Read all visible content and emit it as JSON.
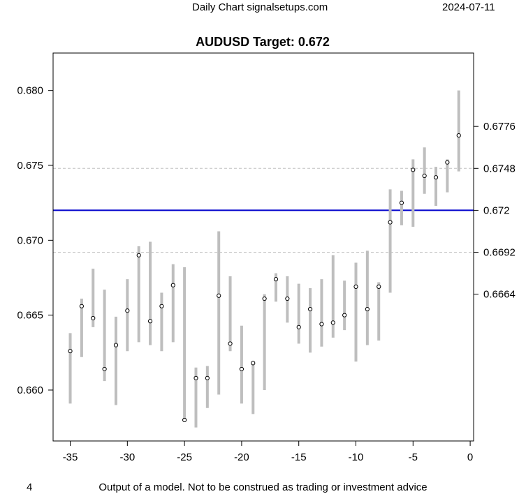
{
  "header": {
    "site": "Daily Chart signalsetups.com",
    "date": "2024-07-11"
  },
  "footer": {
    "number": "4",
    "disclaimer": "Output of a model. Not to be construed as trading or investment advice"
  },
  "colors": {
    "range_bar": "#bebebe",
    "target_line": "#0000cc",
    "ref_line": "#c0c0c0",
    "axis": "#000000"
  },
  "chart_data": {
    "type": "range",
    "title": "AUDUSD Target: 0.672",
    "xlabel": "",
    "ylabel": "",
    "xlim": [
      -36.5,
      0.3
    ],
    "ylim": [
      0.6566,
      0.6825
    ],
    "x_ticks": [
      -35,
      -30,
      -25,
      -20,
      -15,
      -10,
      -5,
      0
    ],
    "y_ticks_left": [
      0.66,
      0.665,
      0.67,
      0.675,
      0.68
    ],
    "y_ticks_right": [
      0.6664,
      0.6692,
      0.672,
      0.6748,
      0.6776
    ],
    "target": 0.672,
    "reference_lines": [
      0.6748,
      0.6692
    ],
    "grid": false,
    "bars": [
      {
        "x": -35,
        "low": 0.6591,
        "high": 0.6638,
        "close": 0.6626
      },
      {
        "x": -34,
        "low": 0.6622,
        "high": 0.6661,
        "close": 0.6656
      },
      {
        "x": -33,
        "low": 0.6642,
        "high": 0.6681,
        "close": 0.6648
      },
      {
        "x": -32,
        "low": 0.6606,
        "high": 0.6667,
        "close": 0.6614
      },
      {
        "x": -31,
        "low": 0.659,
        "high": 0.6649,
        "close": 0.663
      },
      {
        "x": -30,
        "low": 0.6626,
        "high": 0.6674,
        "close": 0.6653
      },
      {
        "x": -29,
        "low": 0.6632,
        "high": 0.6696,
        "close": 0.669
      },
      {
        "x": -28,
        "low": 0.663,
        "high": 0.6699,
        "close": 0.6646
      },
      {
        "x": -27,
        "low": 0.6626,
        "high": 0.6665,
        "close": 0.6656
      },
      {
        "x": -26,
        "low": 0.6632,
        "high": 0.6684,
        "close": 0.667
      },
      {
        "x": -25,
        "low": 0.6579,
        "high": 0.6682,
        "close": 0.658
      },
      {
        "x": -24,
        "low": 0.6575,
        "high": 0.6615,
        "close": 0.6608
      },
      {
        "x": -23,
        "low": 0.6588,
        "high": 0.6616,
        "close": 0.6608
      },
      {
        "x": -22,
        "low": 0.6597,
        "high": 0.6706,
        "close": 0.6663
      },
      {
        "x": -21,
        "low": 0.6626,
        "high": 0.6676,
        "close": 0.6631
      },
      {
        "x": -20,
        "low": 0.6591,
        "high": 0.6643,
        "close": 0.6614
      },
      {
        "x": -19,
        "low": 0.6584,
        "high": 0.6618,
        "close": 0.6618
      },
      {
        "x": -18,
        "low": 0.66,
        "high": 0.6664,
        "close": 0.6661
      },
      {
        "x": -17,
        "low": 0.6659,
        "high": 0.6678,
        "close": 0.6674
      },
      {
        "x": -16,
        "low": 0.6645,
        "high": 0.6676,
        "close": 0.6661
      },
      {
        "x": -15,
        "low": 0.6631,
        "high": 0.6671,
        "close": 0.6642
      },
      {
        "x": -14,
        "low": 0.6625,
        "high": 0.6668,
        "close": 0.6654
      },
      {
        "x": -13,
        "low": 0.6629,
        "high": 0.6674,
        "close": 0.6644
      },
      {
        "x": -12,
        "low": 0.6635,
        "high": 0.669,
        "close": 0.6645
      },
      {
        "x": -11,
        "low": 0.664,
        "high": 0.6673,
        "close": 0.665
      },
      {
        "x": -10,
        "low": 0.6619,
        "high": 0.6685,
        "close": 0.6669
      },
      {
        "x": -9,
        "low": 0.663,
        "high": 0.6693,
        "close": 0.6654
      },
      {
        "x": -8,
        "low": 0.6633,
        "high": 0.6672,
        "close": 0.6669
      },
      {
        "x": -7,
        "low": 0.6665,
        "high": 0.6734,
        "close": 0.6712
      },
      {
        "x": -6,
        "low": 0.671,
        "high": 0.6733,
        "close": 0.6725
      },
      {
        "x": -5,
        "low": 0.6709,
        "high": 0.6754,
        "close": 0.6747
      },
      {
        "x": -4,
        "low": 0.6731,
        "high": 0.6762,
        "close": 0.6743
      },
      {
        "x": -3,
        "low": 0.6723,
        "high": 0.6749,
        "close": 0.6742
      },
      {
        "x": -2,
        "low": 0.6732,
        "high": 0.6754,
        "close": 0.6752
      },
      {
        "x": -1,
        "low": 0.6746,
        "high": 0.68,
        "close": 0.677
      }
    ]
  }
}
